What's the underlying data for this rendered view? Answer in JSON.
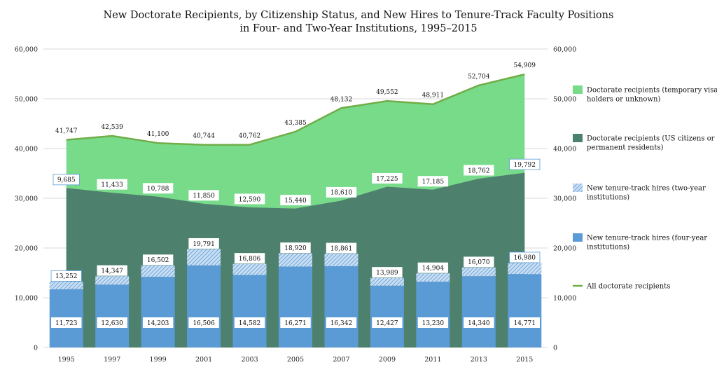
{
  "chart_data": {
    "type": "area",
    "title": [
      "New Doctorate Recipients, by Citizenship Status, and New Hires to Tenure-Track Faculty Positions",
      "in Four- and Two-Year Institutions, 1995–2015"
    ],
    "categories": [
      "1995",
      "1997",
      "1999",
      "2001",
      "2003",
      "2005",
      "2007",
      "2009",
      "2011",
      "2013",
      "2015"
    ],
    "y_ticks": [
      "0",
      "10,000",
      "20,000",
      "30,000",
      "40,000",
      "50,000",
      "60,000"
    ],
    "ylim": [
      0,
      60000
    ],
    "grid": true,
    "legend_position": "right",
    "colors": {
      "temp_visa": "#77db8a",
      "us_citizens": "#4e806e",
      "two_year_hires": "#a9ccec",
      "four_year_hires": "#5b9bd5",
      "all_doctorate_line": "#70ad47"
    },
    "series": [
      {
        "key": "temp_visa",
        "name": "Doctorate recipients (temporary visa holders or unknown)",
        "chart": "area",
        "values": [
          9685,
          11433,
          10788,
          11850,
          12590,
          15440,
          18610,
          17225,
          17185,
          18762,
          19792
        ]
      },
      {
        "key": "us_citizens",
        "name": "Doctorate recipients (US citizens or permanent residents)",
        "chart": "area",
        "values": [
          32062,
          31106,
          30312,
          28894,
          28172,
          27945,
          29522,
          32327,
          31726,
          33942,
          35117
        ]
      },
      {
        "key": "two_year_hires",
        "name": "New tenure-track hires (two-year institutions)",
        "chart": "stacked-bar",
        "values": [
          1529,
          1717,
          2299,
          3285,
          2224,
          2649,
          2519,
          1562,
          1674,
          1730,
          2209
        ]
      },
      {
        "key": "four_year_hires",
        "name": "New tenure-track hires (four-year institutions)",
        "chart": "stacked-bar",
        "values": [
          11723,
          12630,
          14203,
          16506,
          14582,
          16271,
          16342,
          12427,
          13230,
          14340,
          14771
        ]
      },
      {
        "key": "all_doctorate",
        "name": "All doctorate recipients",
        "chart": "line",
        "values": [
          41747,
          42539,
          41100,
          40744,
          40762,
          43385,
          48132,
          49552,
          48911,
          52704,
          54909
        ]
      }
    ],
    "data_labels": {
      "all_doctorate": [
        "41,747",
        "42,539",
        "41,100",
        "40,744",
        "40,762",
        "43,385",
        "48,132",
        "49,552",
        "48,911",
        "52,704",
        "54,909"
      ],
      "temp_visa": [
        "9,685",
        "11,433",
        "10,788",
        "11,850",
        "12,590",
        "15,440",
        "18,610",
        "17,225",
        "17,185",
        "18,762",
        "19,792"
      ],
      "total_hires": [
        "13,252",
        "14,347",
        "16,502",
        "19,791",
        "16,806",
        "18,920",
        "18,861",
        "13,989",
        "14,904",
        "16,070",
        "16,980"
      ],
      "four_year_hires": [
        "11,723",
        "12,630",
        "14,203",
        "16,506",
        "14,582",
        "16,271",
        "16,342",
        "12,427",
        "13,230",
        "14,340",
        "14,771"
      ]
    },
    "legend": [
      {
        "key": "temp_visa",
        "lines": [
          "Doctorate recipients (temporary visa",
          "holders or unknown)"
        ],
        "swatch": "area"
      },
      {
        "key": "us_citizens",
        "lines": [
          "Doctorate recipients (US citizens or",
          "permanent residents)"
        ],
        "swatch": "area"
      },
      {
        "key": "two_year_hires",
        "lines": [
          "New tenure-track hires (two-year",
          "institutions)"
        ],
        "swatch": "pattern"
      },
      {
        "key": "four_year_hires",
        "lines": [
          "New tenure-track hires (four-year",
          "institutions)"
        ],
        "swatch": "area"
      },
      {
        "key": "all_doctorate",
        "lines": [
          "All doctorate recipients"
        ],
        "swatch": "line"
      }
    ]
  }
}
